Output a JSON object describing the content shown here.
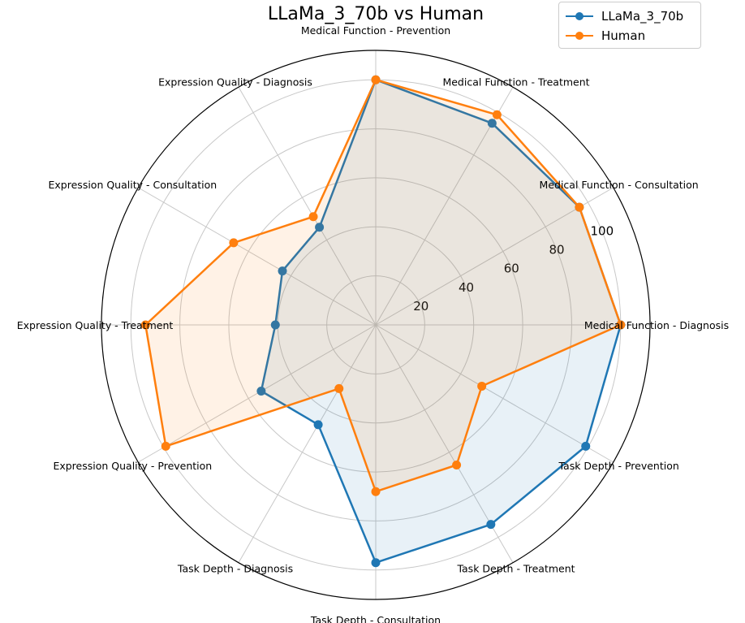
{
  "chart_data": {
    "type": "radar",
    "title": "LLaMa_3_70b vs Human",
    "categories": [
      "Medical Function - Diagnosis",
      "Medical Function - Consultation",
      "Medical Function - Treatment",
      "Medical Function - Prevention",
      "Expression Quality - Diagnosis",
      "Expression Quality - Consultation",
      "Expression Quality - Treatment",
      "Expression Quality - Prevention",
      "Task Depth - Diagnosis",
      "Task Depth - Consultation",
      "Task Depth - Treatment",
      "Task Depth - Prevention"
    ],
    "radial_ticks": [
      "20",
      "40",
      "60",
      "80",
      "100"
    ],
    "radial_tick_values": [
      20,
      40,
      60,
      80,
      100
    ],
    "rlim": [
      0,
      112
    ],
    "grid": true,
    "legend_position": "top-right",
    "series": [
      {
        "name": "LLaMa_3_70b",
        "color": "#1f77b4",
        "values": [
          100,
          96,
          95,
          100,
          46,
          44,
          41,
          54,
          47,
          97,
          94,
          99
        ]
      },
      {
        "name": "Human",
        "color": "#ff7f0e",
        "values": [
          100,
          96,
          99,
          100,
          51,
          67,
          94,
          99,
          30,
          68,
          66,
          50
        ]
      }
    ]
  }
}
